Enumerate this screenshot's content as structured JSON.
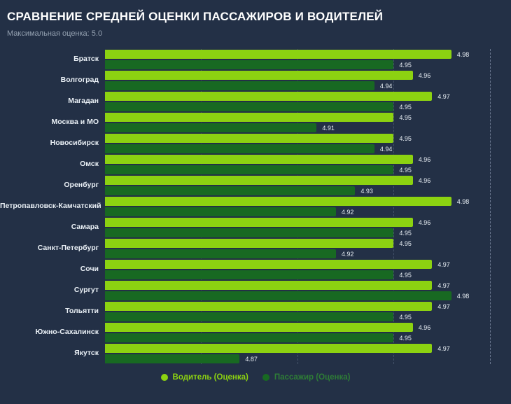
{
  "title": "СРАВНЕНИЕ СРЕДНЕЙ ОЦЕНКИ ПАССАЖИРОВ И ВОДИТЕЛЕЙ",
  "subtitle": "Максимальная оценка: 5.0",
  "colors": {
    "background": "#233046",
    "title": "#FFFFFF",
    "subtitle": "#94A1B1",
    "category_label": "#EAF0F6",
    "value_label": "#E9EFF5",
    "driver": "#8CD211",
    "passenger": "#186922",
    "legend_driver_text": "#8CD211",
    "legend_passenger_text": "#2E7D36",
    "gridline": "rgba(168,188,214,0.25)",
    "gridline_max": "rgba(190,205,230,0.45)"
  },
  "chart_data": {
    "type": "bar",
    "orientation": "horizontal",
    "title": "СРАВНЕНИЕ СРЕДНЕЙ ОЦЕНКИ ПАССАЖИРОВ И ВОДИТЕЛЕЙ",
    "subtitle": "Максимальная оценка: 5.0",
    "max_rating": 5.0,
    "xlim": [
      4.8,
      5.011
    ],
    "gridlines": [
      4.85,
      4.9,
      4.95,
      5.0
    ],
    "grid_style": "dashed",
    "legend_position": "bottom-center",
    "value_labels": "outside-end",
    "categories": [
      "Братск",
      "Волгоград",
      "Магадан",
      "Москва и МО",
      "Новосибирск",
      "Омск",
      "Оренбург",
      "Петропавловск-Камчатский",
      "Самара",
      "Санкт-Петербург",
      "Сочи",
      "Сургут",
      "Тольятти",
      "Южно-Сахалинск",
      "Якутск"
    ],
    "series": [
      {
        "name": "Водитель (Оценка)",
        "color": "#8CD211",
        "values": [
          4.98,
          4.96,
          4.97,
          4.95,
          4.95,
          4.96,
          4.96,
          4.98,
          4.96,
          4.95,
          4.97,
          4.97,
          4.97,
          4.96,
          4.97
        ]
      },
      {
        "name": "Пассажир (Оценка)",
        "color": "#186922",
        "values": [
          4.95,
          4.94,
          4.95,
          4.91,
          4.94,
          4.95,
          4.93,
          4.92,
          4.95,
          4.92,
          4.95,
          4.98,
          4.95,
          4.95,
          4.87
        ]
      }
    ]
  },
  "legend": {
    "items": [
      {
        "label": "Водитель (Оценка)"
      },
      {
        "label": "Пассажир (Оценка)"
      }
    ]
  }
}
